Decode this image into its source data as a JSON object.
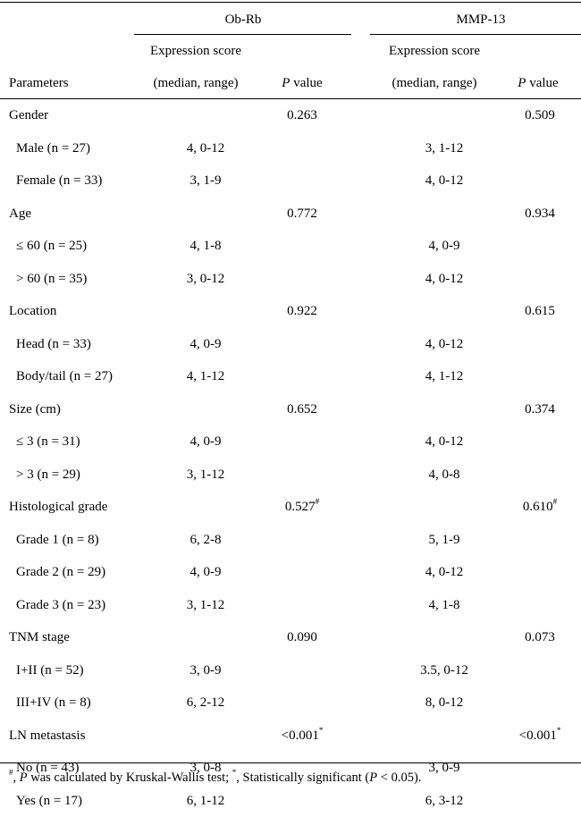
{
  "header": {
    "group1": "Ob-Rb",
    "group2": "MMP-13",
    "expr_line1": "Expression score",
    "expr_line2": "(median, range)",
    "parameters": "Parameters",
    "p_italic": "P",
    "p_rest": " value"
  },
  "rows": [
    {
      "label": "Gender",
      "indent": false,
      "ob_expr": "",
      "ob_p": "0.263",
      "ob_mark": "",
      "mmp_expr": "",
      "mmp_p": "0.509",
      "mmp_mark": ""
    },
    {
      "label": "Male (n = 27)",
      "indent": true,
      "ob_expr": "4, 0-12",
      "ob_p": "",
      "ob_mark": "",
      "mmp_expr": "3, 1-12",
      "mmp_p": "",
      "mmp_mark": ""
    },
    {
      "label": "Female (n = 33)",
      "indent": true,
      "ob_expr": "3, 1-9",
      "ob_p": "",
      "ob_mark": "",
      "mmp_expr": "4, 0-12",
      "mmp_p": "",
      "mmp_mark": ""
    },
    {
      "label": "Age",
      "indent": false,
      "ob_expr": "",
      "ob_p": "0.772",
      "ob_mark": "",
      "mmp_expr": "",
      "mmp_p": "0.934",
      "mmp_mark": ""
    },
    {
      "label": "≤ 60 (n = 25)",
      "indent": true,
      "ob_expr": "4, 1-8",
      "ob_p": "",
      "ob_mark": "",
      "mmp_expr": "4, 0-9",
      "mmp_p": "",
      "mmp_mark": ""
    },
    {
      "label": "> 60 (n = 35)",
      "indent": true,
      "ob_expr": "3, 0-12",
      "ob_p": "",
      "ob_mark": "",
      "mmp_expr": "4, 0-12",
      "mmp_p": "",
      "mmp_mark": ""
    },
    {
      "label": "Location",
      "indent": false,
      "ob_expr": "",
      "ob_p": "0.922",
      "ob_mark": "",
      "mmp_expr": "",
      "mmp_p": "0.615",
      "mmp_mark": ""
    },
    {
      "label": "Head (n = 33)",
      "indent": true,
      "ob_expr": "4, 0-9",
      "ob_p": "",
      "ob_mark": "",
      "mmp_expr": "4, 0-12",
      "mmp_p": "",
      "mmp_mark": ""
    },
    {
      "label": "Body/tail (n = 27)",
      "indent": true,
      "ob_expr": "4, 1-12",
      "ob_p": "",
      "ob_mark": "",
      "mmp_expr": "4, 1-12",
      "mmp_p": "",
      "mmp_mark": ""
    },
    {
      "label": "Size (cm)",
      "indent": false,
      "ob_expr": "",
      "ob_p": "0.652",
      "ob_mark": "",
      "mmp_expr": "",
      "mmp_p": "0.374",
      "mmp_mark": ""
    },
    {
      "label": "≤ 3 (n = 31)",
      "indent": true,
      "ob_expr": "4, 0-9",
      "ob_p": "",
      "ob_mark": "",
      "mmp_expr": "4, 0-12",
      "mmp_p": "",
      "mmp_mark": ""
    },
    {
      "label": "> 3 (n = 29)",
      "indent": true,
      "ob_expr": "3, 1-12",
      "ob_p": "",
      "ob_mark": "",
      "mmp_expr": "4, 0-8",
      "mmp_p": "",
      "mmp_mark": ""
    },
    {
      "label": "Histological grade",
      "indent": false,
      "ob_expr": "",
      "ob_p": "0.527",
      "ob_mark": "#",
      "mmp_expr": "",
      "mmp_p": "0.610",
      "mmp_mark": "#"
    },
    {
      "label": "Grade 1 (n = 8)",
      "indent": true,
      "ob_expr": "6, 2-8",
      "ob_p": "",
      "ob_mark": "",
      "mmp_expr": "5, 1-9",
      "mmp_p": "",
      "mmp_mark": ""
    },
    {
      "label": "Grade 2 (n = 29)",
      "indent": true,
      "ob_expr": "4, 0-9",
      "ob_p": "",
      "ob_mark": "",
      "mmp_expr": "4, 0-12",
      "mmp_p": "",
      "mmp_mark": ""
    },
    {
      "label": "Grade 3 (n = 23)",
      "indent": true,
      "ob_expr": "3, 1-12",
      "ob_p": "",
      "ob_mark": "",
      "mmp_expr": "4, 1-8",
      "mmp_p": "",
      "mmp_mark": ""
    },
    {
      "label": "TNM stage",
      "indent": false,
      "ob_expr": "",
      "ob_p": "0.090",
      "ob_mark": "",
      "mmp_expr": "",
      "mmp_p": "0.073",
      "mmp_mark": ""
    },
    {
      "label": "I+II (n = 52)",
      "indent": true,
      "ob_expr": "3, 0-9",
      "ob_p": "",
      "ob_mark": "",
      "mmp_expr": "3.5, 0-12",
      "mmp_p": "",
      "mmp_mark": ""
    },
    {
      "label": "III+IV (n = 8)",
      "indent": true,
      "ob_expr": "6, 2-12",
      "ob_p": "",
      "ob_mark": "",
      "mmp_expr": "8, 0-12",
      "mmp_p": "",
      "mmp_mark": ""
    },
    {
      "label": "LN metastasis",
      "indent": false,
      "ob_expr": "",
      "ob_p": "<0.001",
      "ob_mark": "*",
      "mmp_expr": "",
      "mmp_p": "<0.001",
      "mmp_mark": "*"
    },
    {
      "label": "No (n = 43)",
      "indent": true,
      "ob_expr": "3, 0-8",
      "ob_p": "",
      "ob_mark": "",
      "mmp_expr": "3, 0-9",
      "mmp_p": "",
      "mmp_mark": ""
    },
    {
      "label": "Yes (n = 17)",
      "indent": true,
      "ob_expr": "6, 1-12",
      "ob_p": "",
      "ob_mark": "",
      "mmp_expr": "6, 3-12",
      "mmp_p": "",
      "mmp_mark": ""
    }
  ],
  "footnote": {
    "mark1": "#",
    "text1": ", ",
    "p_italic": "P",
    "text2": " was calculated by Kruskal-Wallis test; ",
    "mark2": "*",
    "text3": ", Statistically significant (",
    "p_italic2": "P",
    "text4": " < 0.05)."
  }
}
